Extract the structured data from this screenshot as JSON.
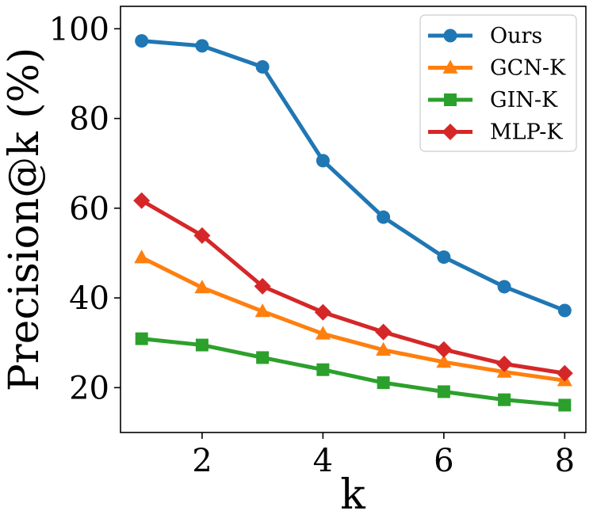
{
  "chart_data": {
    "type": "line",
    "title": "",
    "xlabel": "k",
    "ylabel": "Precision@k (%)",
    "x": [
      1,
      2,
      3,
      4,
      5,
      6,
      7,
      8
    ],
    "xlim": [
      0.65,
      8.35
    ],
    "ylim": [
      10,
      105
    ],
    "xticks": [
      2,
      4,
      6,
      8
    ],
    "yticks": [
      20,
      40,
      60,
      80,
      100
    ],
    "grid": false,
    "legend_position": "top-right",
    "series": [
      {
        "name": "Ours",
        "color": "#1f77b4",
        "marker": "circle",
        "values": [
          97.3,
          96.2,
          91.5,
          70.6,
          58.0,
          49.1,
          42.5,
          37.2
        ]
      },
      {
        "name": "GCN-K",
        "color": "#ff7f0e",
        "marker": "triangle",
        "values": [
          49.0,
          42.3,
          37.0,
          32.0,
          28.4,
          25.7,
          23.5,
          21.6
        ]
      },
      {
        "name": "GIN-K",
        "color": "#2ca02c",
        "marker": "square",
        "values": [
          30.9,
          29.5,
          26.7,
          24.0,
          21.1,
          19.1,
          17.3,
          16.1
        ]
      },
      {
        "name": "MLP-K",
        "color": "#d62728",
        "marker": "diamond",
        "values": [
          61.7,
          53.9,
          42.6,
          36.8,
          32.4,
          28.5,
          25.3,
          23.2
        ]
      }
    ]
  }
}
